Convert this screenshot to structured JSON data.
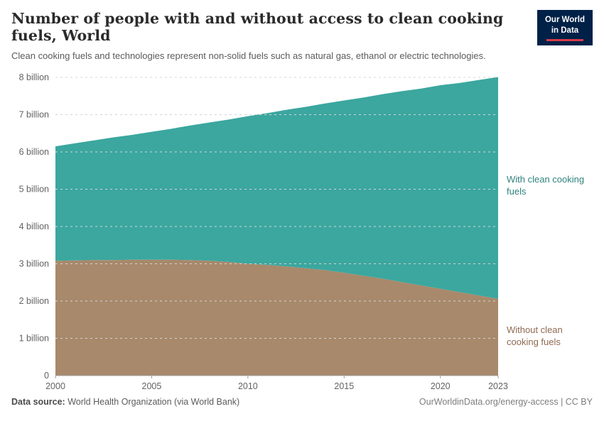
{
  "header": {
    "title": "Number of people with and without access to clean cooking fuels, World",
    "subtitle": "Clean cooking fuels and technologies represent non-solid fuels such as natural gas, ethanol or electric technologies.",
    "logo": {
      "line1": "Our World",
      "line2": "in Data"
    }
  },
  "colors": {
    "brand_navy": "#002147",
    "brand_red": "#d93a4a",
    "teal_area": "#3ba79f",
    "teal_text": "#2f837d",
    "brown_area": "#a8896b",
    "brown_text": "#8f6a50"
  },
  "chart_data": {
    "type": "area",
    "stacked": true,
    "title": "Number of people with and without access to clean cooking fuels, World",
    "xlabel": "",
    "ylabel": "",
    "ylim": [
      0,
      8
    ],
    "grid": "horizontal-dashed",
    "legend_position": "right-annotations",
    "x": [
      2000,
      2001,
      2002,
      2003,
      2004,
      2005,
      2006,
      2007,
      2008,
      2009,
      2010,
      2011,
      2012,
      2013,
      2014,
      2015,
      2016,
      2017,
      2018,
      2019,
      2020,
      2021,
      2022,
      2023
    ],
    "series": [
      {
        "name": "Without clean cooking fuels",
        "color": "#a8896b",
        "label_color": "#8f6a50",
        "unit": "billion people",
        "values": [
          3.08,
          3.09,
          3.1,
          3.1,
          3.11,
          3.11,
          3.11,
          3.1,
          3.08,
          3.05,
          3.0,
          2.97,
          2.93,
          2.88,
          2.83,
          2.76,
          2.68,
          2.6,
          2.51,
          2.42,
          2.33,
          2.24,
          2.15,
          2.06
        ]
      },
      {
        "name": "With clean cooking fuels",
        "color": "#3ba79f",
        "label_color": "#2f837d",
        "unit": "billion people",
        "values": [
          3.07,
          3.14,
          3.21,
          3.29,
          3.35,
          3.43,
          3.51,
          3.61,
          3.71,
          3.82,
          3.96,
          4.07,
          4.2,
          4.33,
          4.47,
          4.62,
          4.78,
          4.95,
          5.12,
          5.28,
          5.46,
          5.61,
          5.78,
          5.95
        ]
      }
    ],
    "yticks": [
      {
        "v": 0,
        "label": "0"
      },
      {
        "v": 1,
        "label": "1 billion"
      },
      {
        "v": 2,
        "label": "2 billion"
      },
      {
        "v": 3,
        "label": "3 billion"
      },
      {
        "v": 4,
        "label": "4 billion"
      },
      {
        "v": 5,
        "label": "5 billion"
      },
      {
        "v": 6,
        "label": "6 billion"
      },
      {
        "v": 7,
        "label": "7 billion"
      },
      {
        "v": 8,
        "label": "8 billion"
      }
    ],
    "xticks": [
      2000,
      2005,
      2010,
      2015,
      2020,
      2023
    ]
  },
  "footer": {
    "source_label": "Data source:",
    "source_text": " World Health Organization (via World Bank)",
    "credit": "OurWorldinData.org/energy-access | CC BY"
  }
}
